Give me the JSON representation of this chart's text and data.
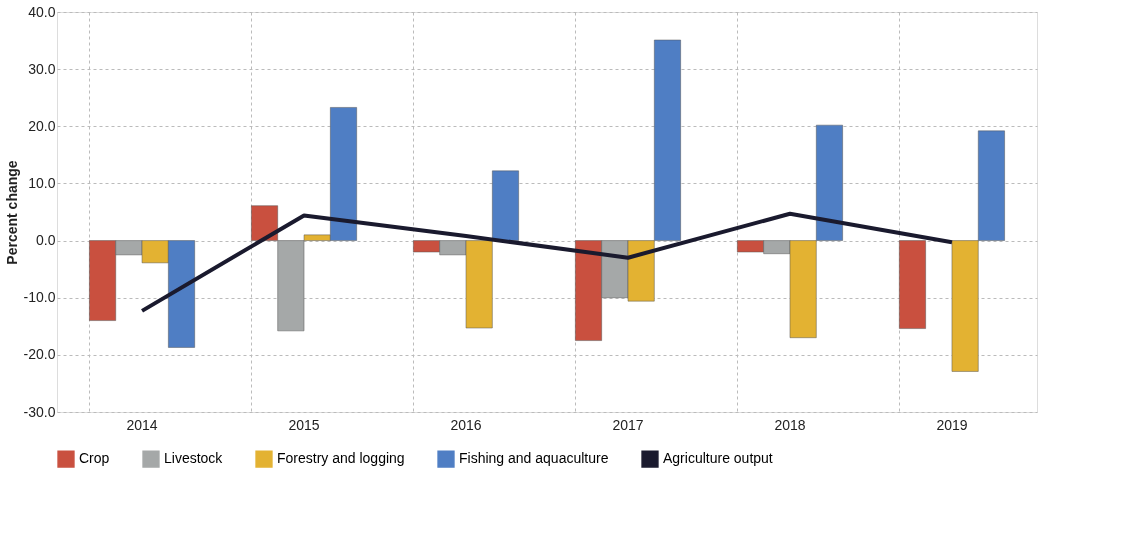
{
  "chart_data": {
    "type": "bar",
    "ylabel": "Percent change",
    "categories": [
      "2014",
      "2015",
      "2016",
      "2017",
      "2018",
      "2019"
    ],
    "series": [
      {
        "name": "Crop",
        "color": "#c9503f",
        "values": [
          -14.0,
          6.1,
          -2.0,
          -17.5,
          -2.0,
          -15.4
        ]
      },
      {
        "name": "Livestock",
        "color": "#a5a8a8",
        "values": [
          -2.5,
          -15.8,
          -2.5,
          -10.0,
          -2.3,
          null
        ]
      },
      {
        "name": "Forestry and logging",
        "color": "#e3b232",
        "values": [
          -3.9,
          1.0,
          -15.3,
          -10.6,
          -17.0,
          -22.9
        ]
      },
      {
        "name": "Fishing and aquaculture",
        "color": "#4f7ec4",
        "values": [
          -18.7,
          23.3,
          12.2,
          35.1,
          20.2,
          19.2
        ]
      },
      {
        "name": "Agriculture output",
        "color": "#1a1a2e",
        "type": "line",
        "values": [
          -12.3,
          4.4,
          0.8,
          -3.0,
          4.7,
          -0.3
        ]
      }
    ],
    "ylim": [
      -30,
      40
    ],
    "yticks": [
      {
        "value": -30,
        "label": "-30.0"
      },
      {
        "value": -20,
        "label": "-20.0"
      },
      {
        "value": -10,
        "label": "-10.0"
      },
      {
        "value": 0,
        "label": "0.0"
      },
      {
        "value": 10,
        "label": "10.0"
      },
      {
        "value": 20,
        "label": "20.0"
      },
      {
        "value": 30,
        "label": "30.0"
      },
      {
        "value": 40,
        "label": "40.0"
      }
    ],
    "grid": true,
    "legend": "bottom"
  }
}
